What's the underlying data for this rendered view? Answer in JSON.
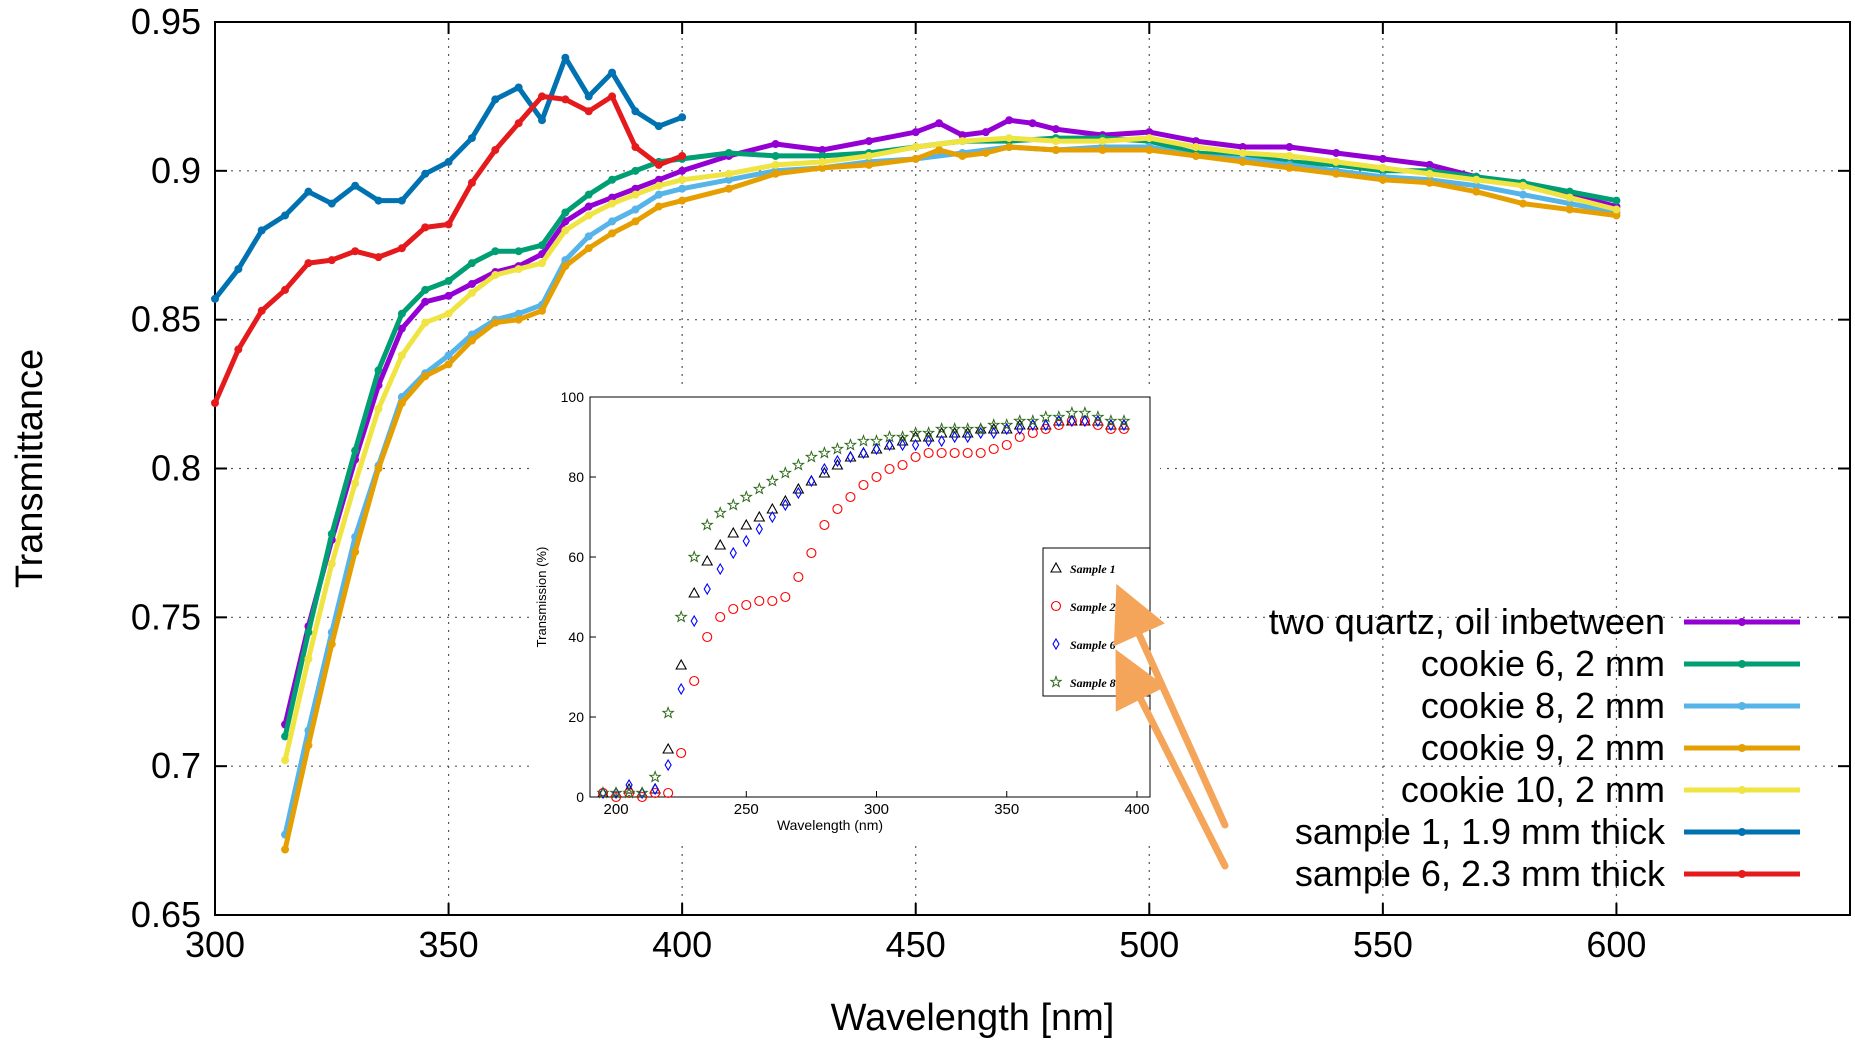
{
  "chart_data": [
    {
      "type": "line",
      "title": "",
      "xlabel": "Wavelength [nm]",
      "ylabel": "Transmittance",
      "xlim": [
        300,
        650
      ],
      "ylim": [
        0.65,
        0.95
      ],
      "grid": true,
      "legend_position": "bottom-right",
      "x_ticks": [
        "300",
        "350",
        "400",
        "450",
        "500",
        "550",
        "600"
      ],
      "y_ticks": [
        "0.65",
        "0.7",
        "0.75",
        "0.8",
        "0.85",
        "0.9",
        "0.95"
      ],
      "series": [
        {
          "name": "two quartz, oil inbetween",
          "color": "#9400d3",
          "x": [
            315,
            320,
            325,
            330,
            335,
            340,
            345,
            350,
            355,
            360,
            365,
            370,
            375,
            380,
            385,
            390,
            395,
            400,
            410,
            420,
            430,
            440,
            450,
            455,
            460,
            465,
            470,
            475,
            480,
            490,
            500,
            510,
            520,
            530,
            540,
            550,
            560,
            570,
            580,
            590,
            600
          ],
          "y": [
            0.714,
            0.747,
            0.776,
            0.803,
            0.828,
            0.847,
            0.856,
            0.858,
            0.862,
            0.866,
            0.868,
            0.872,
            0.883,
            0.888,
            0.891,
            0.894,
            0.897,
            0.9,
            0.905,
            0.909,
            0.907,
            0.91,
            0.913,
            0.916,
            0.912,
            0.913,
            0.917,
            0.916,
            0.914,
            0.912,
            0.913,
            0.91,
            0.908,
            0.908,
            0.906,
            0.904,
            0.902,
            0.898,
            0.895,
            0.892,
            0.888
          ]
        },
        {
          "name": "cookie 6, 2 mm",
          "color": "#009e73",
          "x": [
            315,
            320,
            325,
            330,
            335,
            340,
            345,
            350,
            355,
            360,
            365,
            370,
            375,
            380,
            385,
            390,
            395,
            400,
            410,
            420,
            430,
            440,
            450,
            460,
            470,
            480,
            490,
            500,
            510,
            520,
            530,
            540,
            550,
            560,
            570,
            580,
            590,
            600
          ],
          "y": [
            0.71,
            0.745,
            0.778,
            0.806,
            0.833,
            0.852,
            0.86,
            0.863,
            0.869,
            0.873,
            0.873,
            0.875,
            0.886,
            0.892,
            0.897,
            0.9,
            0.903,
            0.904,
            0.906,
            0.905,
            0.905,
            0.906,
            0.908,
            0.91,
            0.91,
            0.911,
            0.911,
            0.91,
            0.906,
            0.905,
            0.903,
            0.902,
            0.9,
            0.9,
            0.898,
            0.896,
            0.893,
            0.89
          ]
        },
        {
          "name": "cookie 8, 2 mm",
          "color": "#56b4e9",
          "x": [
            315,
            320,
            325,
            330,
            335,
            340,
            345,
            350,
            355,
            360,
            365,
            370,
            375,
            380,
            385,
            390,
            395,
            400,
            410,
            420,
            430,
            440,
            450,
            460,
            470,
            480,
            490,
            500,
            510,
            520,
            530,
            540,
            550,
            560,
            570,
            580,
            590,
            600
          ],
          "y": [
            0.677,
            0.712,
            0.745,
            0.777,
            0.801,
            0.824,
            0.832,
            0.838,
            0.845,
            0.85,
            0.852,
            0.855,
            0.87,
            0.878,
            0.883,
            0.887,
            0.892,
            0.894,
            0.897,
            0.9,
            0.901,
            0.903,
            0.904,
            0.906,
            0.908,
            0.907,
            0.908,
            0.908,
            0.905,
            0.904,
            0.902,
            0.9,
            0.898,
            0.897,
            0.895,
            0.892,
            0.889,
            0.886
          ]
        },
        {
          "name": "cookie 9, 2 mm",
          "color": "#e69f00",
          "x": [
            315,
            320,
            325,
            330,
            335,
            340,
            345,
            350,
            355,
            360,
            365,
            370,
            375,
            380,
            385,
            390,
            395,
            400,
            410,
            420,
            430,
            440,
            450,
            455,
            460,
            465,
            470,
            480,
            490,
            500,
            510,
            520,
            530,
            540,
            550,
            560,
            570,
            580,
            590,
            600
          ],
          "y": [
            0.672,
            0.707,
            0.741,
            0.772,
            0.8,
            0.822,
            0.831,
            0.835,
            0.843,
            0.849,
            0.85,
            0.853,
            0.868,
            0.874,
            0.879,
            0.883,
            0.888,
            0.89,
            0.894,
            0.899,
            0.901,
            0.902,
            0.904,
            0.907,
            0.905,
            0.906,
            0.908,
            0.907,
            0.907,
            0.907,
            0.905,
            0.903,
            0.901,
            0.899,
            0.897,
            0.896,
            0.893,
            0.889,
            0.887,
            0.885
          ]
        },
        {
          "name": "cookie 10, 2 mm",
          "color": "#f0e442",
          "x": [
            315,
            320,
            325,
            330,
            335,
            340,
            345,
            350,
            355,
            360,
            365,
            370,
            375,
            380,
            385,
            390,
            395,
            400,
            410,
            420,
            430,
            440,
            450,
            460,
            470,
            480,
            490,
            500,
            510,
            520,
            530,
            540,
            550,
            560,
            570,
            580,
            590,
            600
          ],
          "y": [
            0.702,
            0.736,
            0.768,
            0.795,
            0.82,
            0.838,
            0.849,
            0.852,
            0.859,
            0.865,
            0.867,
            0.869,
            0.88,
            0.885,
            0.889,
            0.892,
            0.895,
            0.897,
            0.899,
            0.902,
            0.903,
            0.905,
            0.908,
            0.91,
            0.911,
            0.91,
            0.91,
            0.911,
            0.908,
            0.906,
            0.905,
            0.903,
            0.901,
            0.899,
            0.897,
            0.895,
            0.891,
            0.887
          ]
        },
        {
          "name": "sample 1, 1.9 mm thick",
          "color": "#0072b2",
          "x": [
            300,
            305,
            310,
            315,
            320,
            325,
            330,
            335,
            340,
            345,
            350,
            355,
            360,
            365,
            370,
            375,
            380,
            385,
            390,
            395,
            400
          ],
          "y": [
            0.857,
            0.867,
            0.88,
            0.885,
            0.893,
            0.889,
            0.895,
            0.89,
            0.89,
            0.899,
            0.903,
            0.911,
            0.924,
            0.928,
            0.917,
            0.938,
            0.925,
            0.933,
            0.92,
            0.915,
            0.918
          ]
        },
        {
          "name": "sample 6, 2.3 mm thick",
          "color": "#e41a1c",
          "x": [
            300,
            305,
            310,
            315,
            320,
            325,
            330,
            335,
            340,
            345,
            350,
            355,
            360,
            365,
            370,
            375,
            380,
            385,
            390,
            395,
            400
          ],
          "y": [
            0.822,
            0.84,
            0.853,
            0.86,
            0.869,
            0.87,
            0.873,
            0.871,
            0.874,
            0.881,
            0.882,
            0.896,
            0.907,
            0.916,
            0.925,
            0.924,
            0.92,
            0.925,
            0.908,
            0.902,
            0.905
          ]
        }
      ]
    },
    {
      "type": "scatter",
      "title": "",
      "xlabel": "Wavelength (nm)",
      "ylabel": "Transmission (%)",
      "xlim": [
        190,
        405
      ],
      "ylim": [
        0,
        100
      ],
      "grid": false,
      "legend_position": "right",
      "x_ticks": [
        "200",
        "250",
        "300",
        "350",
        "400"
      ],
      "y_ticks": [
        "0",
        "20",
        "40",
        "60",
        "80",
        "100"
      ],
      "x": [
        195,
        200,
        205,
        210,
        215,
        220,
        225,
        230,
        235,
        240,
        245,
        250,
        255,
        260,
        265,
        270,
        275,
        280,
        285,
        290,
        295,
        300,
        305,
        310,
        315,
        320,
        325,
        330,
        335,
        340,
        345,
        350,
        355,
        360,
        365,
        370,
        375,
        380,
        385,
        390,
        395
      ],
      "series": [
        {
          "name": "Sample 1",
          "marker": "triangle",
          "color": "#000000",
          "y": [
            1,
            1,
            2,
            1,
            2,
            12,
            33,
            51,
            59,
            63,
            66,
            68,
            70,
            72,
            74,
            77,
            79,
            81,
            83,
            85,
            86,
            87,
            88,
            89,
            90,
            90,
            91,
            91,
            91,
            92,
            92,
            92,
            93,
            93,
            93,
            94,
            94,
            94,
            94,
            93,
            93
          ]
        },
        {
          "name": "Sample 2",
          "marker": "circle",
          "color": "#ff0000",
          "y": [
            1,
            0,
            1,
            0,
            1,
            1,
            11,
            29,
            40,
            45,
            47,
            48,
            49,
            49,
            50,
            55,
            61,
            68,
            72,
            75,
            78,
            80,
            82,
            83,
            85,
            86,
            86,
            86,
            86,
            86,
            87,
            88,
            90,
            91,
            92,
            93,
            94,
            94,
            93,
            92,
            92
          ]
        },
        {
          "name": "Sample 6",
          "marker": "diamond",
          "color": "#0000ff",
          "y": [
            1,
            1,
            3,
            1,
            2,
            8,
            27,
            44,
            52,
            57,
            61,
            64,
            67,
            70,
            73,
            76,
            79,
            82,
            84,
            85,
            86,
            87,
            88,
            88,
            88,
            89,
            89,
            90,
            90,
            91,
            91,
            92,
            92,
            93,
            93,
            94,
            94,
            94,
            94,
            93,
            93
          ]
        },
        {
          "name": "Sample 8",
          "marker": "star",
          "color": "#2e6b1a",
          "y": [
            1,
            1,
            1,
            1,
            5,
            21,
            45,
            60,
            68,
            71,
            73,
            75,
            77,
            79,
            81,
            83,
            85,
            86,
            87,
            88,
            89,
            89,
            90,
            90,
            91,
            91,
            92,
            92,
            92,
            92,
            93,
            93,
            94,
            94,
            95,
            95,
            96,
            96,
            95,
            94,
            94
          ]
        }
      ]
    }
  ]
}
